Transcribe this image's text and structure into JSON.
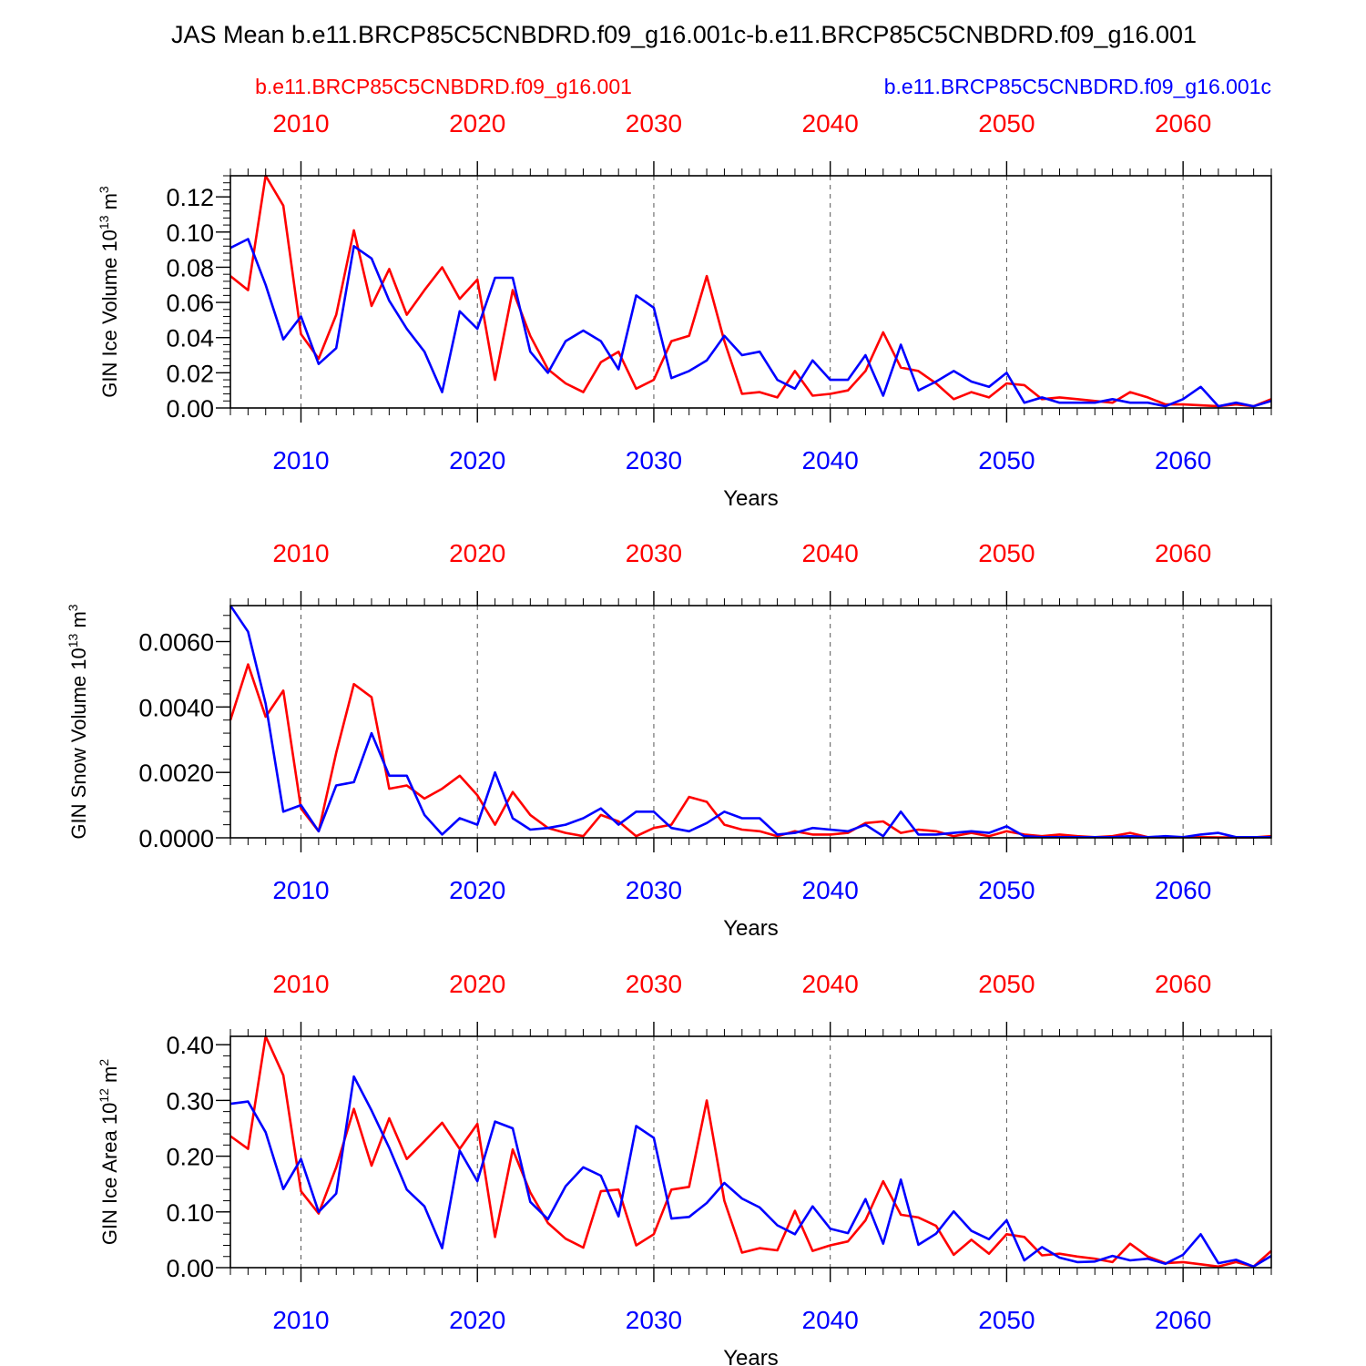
{
  "title": "JAS Mean b.e11.BRCP85C5CNBDRD.f09_g16.001c-b.e11.BRCP85C5CNBDRD.f09_g16.001",
  "legend": {
    "left": "b.e11.BRCP85C5CNBDRD.f09_g16.001",
    "right": "b.e11.BRCP85C5CNBDRD.f09_g16.001c"
  },
  "colors": {
    "red": "#ff0000",
    "blue": "#0000ff",
    "frame": "#000000",
    "grid": "#555555"
  },
  "chart_data": [
    {
      "type": "line",
      "ylabel": "GIN Ice Volume 10",
      "ylabel_sup": "13",
      "ylabel_unit": " m",
      "ylabel_unit_sup": "3",
      "xlabel": "Years",
      "xlim": [
        2006,
        2065
      ],
      "ylim": [
        0,
        0.132
      ],
      "yticks": [
        0.0,
        0.02,
        0.04,
        0.06,
        0.08,
        0.1,
        0.12
      ],
      "ytick_labels": [
        "0.00",
        "0.02",
        "0.04",
        "0.06",
        "0.08",
        "0.10",
        "0.12"
      ],
      "yminor": 0.004,
      "xticks": [
        2010,
        2020,
        2030,
        2040,
        2050,
        2060
      ],
      "xtick_labels": [
        "2010",
        "2020",
        "2030",
        "2040",
        "2050",
        "2060"
      ],
      "x_start": 2006,
      "series": [
        {
          "name": "b.e11.BRCP85C5CNBDRD.f09_g16.001",
          "color": "red",
          "values": [
            0.075,
            0.067,
            0.132,
            0.115,
            0.042,
            0.028,
            0.053,
            0.101,
            0.058,
            0.079,
            0.053,
            0.067,
            0.08,
            0.062,
            0.073,
            0.016,
            0.067,
            0.041,
            0.022,
            0.014,
            0.009,
            0.026,
            0.032,
            0.011,
            0.016,
            0.038,
            0.041,
            0.075,
            0.038,
            0.008,
            0.009,
            0.006,
            0.021,
            0.007,
            0.008,
            0.01,
            0.021,
            0.043,
            0.023,
            0.021,
            0.014,
            0.005,
            0.009,
            0.006,
            0.014,
            0.013,
            0.005,
            0.006,
            0.005,
            0.004,
            0.003,
            0.009,
            0.006,
            0.002,
            0.002,
            0.0015,
            0.001,
            0.002,
            0.001,
            0.005
          ]
        },
        {
          "name": "b.e11.BRCP85C5CNBDRD.f09_g16.001c",
          "color": "blue",
          "values": [
            0.091,
            0.096,
            0.07,
            0.039,
            0.052,
            0.025,
            0.034,
            0.092,
            0.085,
            0.061,
            0.045,
            0.032,
            0.009,
            0.055,
            0.045,
            0.074,
            0.074,
            0.032,
            0.02,
            0.038,
            0.044,
            0.038,
            0.022,
            0.064,
            0.057,
            0.017,
            0.021,
            0.027,
            0.041,
            0.03,
            0.032,
            0.016,
            0.011,
            0.027,
            0.016,
            0.016,
            0.03,
            0.007,
            0.036,
            0.01,
            0.015,
            0.021,
            0.015,
            0.012,
            0.02,
            0.003,
            0.006,
            0.003,
            0.003,
            0.003,
            0.005,
            0.003,
            0.003,
            0.001,
            0.005,
            0.012,
            0.001,
            0.003,
            0.001,
            0.004
          ]
        }
      ]
    },
    {
      "type": "line",
      "ylabel": "GIN Snow Volume 10",
      "ylabel_sup": "13",
      "ylabel_unit": " m",
      "ylabel_unit_sup": "3",
      "xlabel": "Years",
      "xlim": [
        2006,
        2065
      ],
      "ylim": [
        0,
        0.0071
      ],
      "yticks": [
        0.0,
        0.002,
        0.004,
        0.006
      ],
      "ytick_labels": [
        "0.0000",
        "0.0020",
        "0.0040",
        "0.0060"
      ],
      "yminor": 0.0004,
      "xticks": [
        2010,
        2020,
        2030,
        2040,
        2050,
        2060
      ],
      "xtick_labels": [
        "2010",
        "2020",
        "2030",
        "2040",
        "2050",
        "2060"
      ],
      "x_start": 2006,
      "series": [
        {
          "name": "b.e11.BRCP85C5CNBDRD.f09_g16.001",
          "color": "red",
          "values": [
            0.0036,
            0.0053,
            0.0037,
            0.0045,
            0.0009,
            0.0002,
            0.0026,
            0.0047,
            0.0043,
            0.0015,
            0.0016,
            0.0012,
            0.0015,
            0.0019,
            0.0013,
            0.0004,
            0.0014,
            0.0007,
            0.0003,
            0.00015,
            5e-05,
            0.0007,
            0.0005,
            5e-05,
            0.0003,
            0.0004,
            0.00125,
            0.0011,
            0.0004,
            0.00025,
            0.0002,
            5e-05,
            0.0002,
            0.0001,
            0.0001,
            0.00015,
            0.00045,
            0.0005,
            0.00015,
            0.00025,
            0.0002,
            5e-05,
            0.00015,
            5e-05,
            0.0002,
            0.0001,
            5e-05,
            0.0001,
            5e-05,
            2e-05,
            5e-05,
            0.00015,
            2e-05,
            2e-05,
            2e-05,
            2e-05,
            1e-05,
            1e-05,
            1e-05,
            5e-05
          ]
        },
        {
          "name": "b.e11.BRCP85C5CNBDRD.f09_g16.001c",
          "color": "blue",
          "values": [
            0.0071,
            0.0063,
            0.0041,
            0.0008,
            0.001,
            0.0002,
            0.0016,
            0.0017,
            0.0032,
            0.0019,
            0.0019,
            0.0007,
            0.0001,
            0.0006,
            0.0004,
            0.002,
            0.0006,
            0.00025,
            0.0003,
            0.0004,
            0.0006,
            0.0009,
            0.0004,
            0.0008,
            0.0008,
            0.0003,
            0.0002,
            0.00045,
            0.0008,
            0.0006,
            0.0006,
            0.0001,
            0.00015,
            0.0003,
            0.00025,
            0.0002,
            0.0004,
            5e-05,
            0.0008,
            0.0001,
            0.0001,
            0.00015,
            0.0002,
            0.00015,
            0.00035,
            5e-05,
            2e-05,
            2e-05,
            2e-05,
            2e-05,
            2e-05,
            5e-05,
            2e-05,
            5e-05,
            2e-05,
            0.0001,
            0.00015,
            2e-05,
            2e-05,
            2e-05
          ]
        }
      ]
    },
    {
      "type": "line",
      "ylabel": "GIN Ice Area 10",
      "ylabel_sup": "12",
      "ylabel_unit": " m",
      "ylabel_unit_sup": "2",
      "xlabel": "Years",
      "xlim": [
        2006,
        2065
      ],
      "ylim": [
        0,
        0.415
      ],
      "yticks": [
        0.0,
        0.1,
        0.2,
        0.3,
        0.4
      ],
      "ytick_labels": [
        "0.00",
        "0.10",
        "0.20",
        "0.30",
        "0.40"
      ],
      "yminor": 0.02,
      "xticks": [
        2010,
        2020,
        2030,
        2040,
        2050,
        2060
      ],
      "xtick_labels": [
        "2010",
        "2020",
        "2030",
        "2040",
        "2050",
        "2060"
      ],
      "x_start": 2006,
      "series": [
        {
          "name": "b.e11.BRCP85C5CNBDRD.f09_g16.001",
          "color": "red",
          "values": [
            0.236,
            0.213,
            0.415,
            0.345,
            0.137,
            0.097,
            0.18,
            0.285,
            0.183,
            0.268,
            0.195,
            0.227,
            0.26,
            0.213,
            0.258,
            0.055,
            0.212,
            0.135,
            0.08,
            0.052,
            0.036,
            0.137,
            0.14,
            0.04,
            0.06,
            0.14,
            0.145,
            0.3,
            0.12,
            0.027,
            0.035,
            0.031,
            0.102,
            0.03,
            0.04,
            0.047,
            0.085,
            0.155,
            0.095,
            0.09,
            0.075,
            0.023,
            0.05,
            0.025,
            0.06,
            0.055,
            0.022,
            0.025,
            0.02,
            0.016,
            0.01,
            0.043,
            0.02,
            0.008,
            0.01,
            0.006,
            0.002,
            0.01,
            0.002,
            0.03
          ]
        },
        {
          "name": "b.e11.BRCP85C5CNBDRD.f09_g16.001c",
          "color": "blue",
          "values": [
            0.294,
            0.298,
            0.243,
            0.141,
            0.195,
            0.1,
            0.133,
            0.343,
            0.282,
            0.215,
            0.14,
            0.11,
            0.035,
            0.21,
            0.155,
            0.262,
            0.25,
            0.118,
            0.087,
            0.146,
            0.18,
            0.165,
            0.092,
            0.254,
            0.233,
            0.088,
            0.091,
            0.116,
            0.152,
            0.124,
            0.108,
            0.076,
            0.06,
            0.11,
            0.07,
            0.062,
            0.123,
            0.043,
            0.158,
            0.041,
            0.061,
            0.101,
            0.066,
            0.051,
            0.085,
            0.013,
            0.037,
            0.018,
            0.01,
            0.011,
            0.021,
            0.013,
            0.016,
            0.007,
            0.023,
            0.06,
            0.008,
            0.014,
            0.002,
            0.021
          ]
        }
      ]
    }
  ]
}
